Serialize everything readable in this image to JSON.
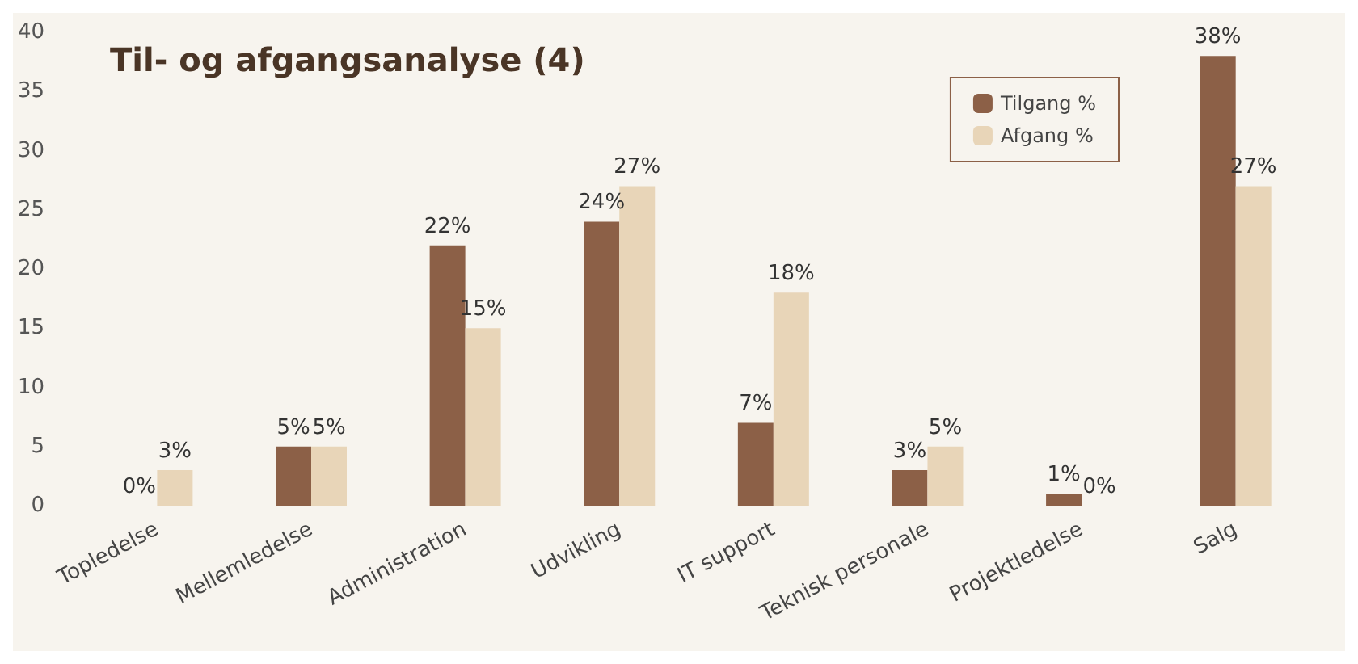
{
  "chart_data": {
    "type": "bar",
    "title": "Til- og afgangsanalyse (4)",
    "categories": [
      "Topledelse",
      "Mellemledelse",
      "Administration",
      "Udvikling",
      "IT support",
      "Teknisk personale",
      "Projektledelse",
      "Salg"
    ],
    "series": [
      {
        "name": "Tilgang %",
        "color": "#8c6047",
        "values": [
          0,
          5,
          22,
          24,
          7,
          3,
          1,
          38
        ],
        "value_labels": [
          "0%",
          "5%",
          "22%",
          "24%",
          "7%",
          "3%",
          "1%",
          "38%"
        ]
      },
      {
        "name": "Afgang %",
        "color": "#e8d5b8",
        "values": [
          3,
          5,
          15,
          27,
          18,
          5,
          0,
          27
        ],
        "value_labels": [
          "3%",
          "5%",
          "15%",
          "27%",
          "18%",
          "5%",
          "0%",
          "27%"
        ]
      }
    ],
    "ylim": [
      0,
      40
    ],
    "yticks": [
      0,
      5,
      10,
      15,
      20,
      25,
      30,
      35,
      40
    ],
    "grid": false,
    "legend": "top right"
  }
}
